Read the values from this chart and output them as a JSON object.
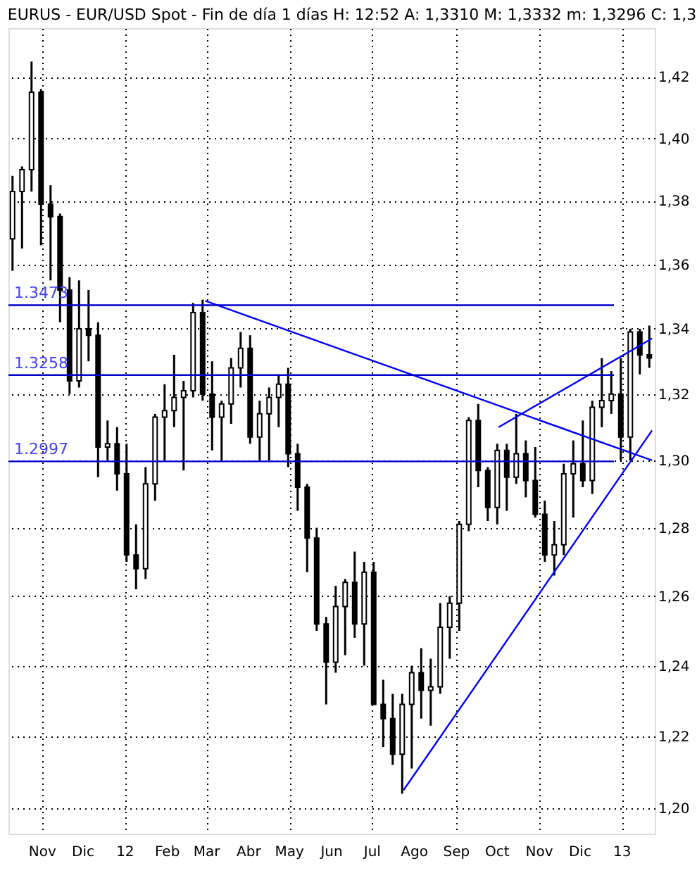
{
  "chart_data": {
    "type": "candlestick",
    "title": "EURUS - EUR/USD Spot - Fin de día 1 días H: 12:52 A: 1,3310 M: 1,3332 m: 1,3296 C: 1,3",
    "x": [
      "2011-10-10",
      "2011-10-17",
      "2011-10-24",
      "2011-10-31",
      "2011-11-07",
      "2011-11-14",
      "2011-11-21",
      "2011-11-28",
      "2011-12-05",
      "2011-12-12",
      "2011-12-19",
      "2011-12-26",
      "2012-01-02",
      "2012-01-09",
      "2012-01-16",
      "2012-01-23",
      "2012-01-30",
      "2012-02-06",
      "2012-02-13",
      "2012-02-20",
      "2012-02-27",
      "2012-03-05",
      "2012-03-12",
      "2012-03-19",
      "2012-03-26",
      "2012-04-02",
      "2012-04-09",
      "2012-04-16",
      "2012-04-23",
      "2012-04-30",
      "2012-05-07",
      "2012-05-14",
      "2012-05-21",
      "2012-05-28",
      "2012-06-04",
      "2012-06-11",
      "2012-06-18",
      "2012-06-25",
      "2012-07-02",
      "2012-07-09",
      "2012-07-16",
      "2012-07-23",
      "2012-07-30",
      "2012-08-06",
      "2012-08-13",
      "2012-08-20",
      "2012-08-27",
      "2012-09-03",
      "2012-09-10",
      "2012-09-17",
      "2012-09-24",
      "2012-10-01",
      "2012-10-08",
      "2012-10-15",
      "2012-10-22",
      "2012-10-29",
      "2012-11-05",
      "2012-11-12",
      "2012-11-19",
      "2012-11-26",
      "2012-12-03",
      "2012-12-10",
      "2012-12-17",
      "2012-12-24",
      "2012-12-31",
      "2013-01-07",
      "2013-01-14",
      "2013-01-21"
    ],
    "ohlc": [
      [
        1.368,
        1.388,
        1.358,
        1.383
      ],
      [
        1.383,
        1.391,
        1.365,
        1.39
      ],
      [
        1.39,
        1.425,
        1.383,
        1.415
      ],
      [
        1.415,
        1.416,
        1.366,
        1.379
      ],
      [
        1.379,
        1.385,
        1.355,
        1.375
      ],
      [
        1.375,
        1.376,
        1.342,
        1.352
      ],
      [
        1.352,
        1.356,
        1.32,
        1.324
      ],
      [
        1.324,
        1.355,
        1.322,
        1.34
      ],
      [
        1.34,
        1.352,
        1.33,
        1.338
      ],
      [
        1.338,
        1.342,
        1.295,
        1.304
      ],
      [
        1.304,
        1.312,
        1.3,
        1.305
      ],
      [
        1.305,
        1.31,
        1.291,
        1.296
      ],
      [
        1.296,
        1.305,
        1.27,
        1.272
      ],
      [
        1.272,
        1.281,
        1.262,
        1.268
      ],
      [
        1.268,
        1.298,
        1.265,
        1.293
      ],
      [
        1.293,
        1.314,
        1.288,
        1.313
      ],
      [
        1.313,
        1.323,
        1.3,
        1.315
      ],
      [
        1.315,
        1.332,
        1.31,
        1.319
      ],
      [
        1.319,
        1.324,
        1.297,
        1.321
      ],
      [
        1.321,
        1.348,
        1.319,
        1.345
      ],
      [
        1.345,
        1.349,
        1.318,
        1.32
      ],
      [
        1.32,
        1.33,
        1.303,
        1.313
      ],
      [
        1.313,
        1.318,
        1.3,
        1.317
      ],
      [
        1.317,
        1.331,
        1.311,
        1.328
      ],
      [
        1.328,
        1.339,
        1.322,
        1.334
      ],
      [
        1.334,
        1.338,
        1.305,
        1.307
      ],
      [
        1.307,
        1.318,
        1.3,
        1.314
      ],
      [
        1.314,
        1.322,
        1.3,
        1.319
      ],
      [
        1.319,
        1.326,
        1.31,
        1.323
      ],
      [
        1.323,
        1.328,
        1.298,
        1.302
      ],
      [
        1.302,
        1.305,
        1.285,
        1.292
      ],
      [
        1.292,
        1.293,
        1.267,
        1.277
      ],
      [
        1.277,
        1.28,
        1.25,
        1.252
      ],
      [
        1.252,
        1.254,
        1.229,
        1.241
      ],
      [
        1.241,
        1.263,
        1.238,
        1.257
      ],
      [
        1.257,
        1.265,
        1.243,
        1.264
      ],
      [
        1.264,
        1.273,
        1.248,
        1.252
      ],
      [
        1.252,
        1.27,
        1.24,
        1.267
      ],
      [
        1.267,
        1.27,
        1.229,
        1.229
      ],
      [
        1.229,
        1.236,
        1.217,
        1.225
      ],
      [
        1.225,
        1.232,
        1.212,
        1.215
      ],
      [
        1.215,
        1.232,
        1.204,
        1.229
      ],
      [
        1.229,
        1.24,
        1.211,
        1.238
      ],
      [
        1.238,
        1.245,
        1.225,
        1.233
      ],
      [
        1.233,
        1.242,
        1.223,
        1.234
      ],
      [
        1.234,
        1.258,
        1.232,
        1.251
      ],
      [
        1.251,
        1.26,
        1.242,
        1.258
      ],
      [
        1.258,
        1.282,
        1.25,
        1.281
      ],
      [
        1.281,
        1.313,
        1.279,
        1.312
      ],
      [
        1.312,
        1.317,
        1.292,
        1.297
      ],
      [
        1.297,
        1.298,
        1.282,
        1.286
      ],
      [
        1.286,
        1.305,
        1.281,
        1.303
      ],
      [
        1.303,
        1.305,
        1.285,
        1.295
      ],
      [
        1.295,
        1.314,
        1.293,
        1.302
      ],
      [
        1.302,
        1.306,
        1.289,
        1.294
      ],
      [
        1.294,
        1.304,
        1.283,
        1.284
      ],
      [
        1.284,
        1.288,
        1.27,
        1.272
      ],
      [
        1.272,
        1.282,
        1.266,
        1.275
      ],
      [
        1.275,
        1.299,
        1.272,
        1.296
      ],
      [
        1.296,
        1.306,
        1.283,
        1.299
      ],
      [
        1.299,
        1.312,
        1.292,
        1.294
      ],
      [
        1.294,
        1.318,
        1.29,
        1.316
      ],
      [
        1.316,
        1.331,
        1.31,
        1.318
      ],
      [
        1.318,
        1.327,
        1.314,
        1.32
      ],
      [
        1.32,
        1.331,
        1.3,
        1.307
      ],
      [
        1.307,
        1.34,
        1.3,
        1.339
      ],
      [
        1.339,
        1.34,
        1.326,
        1.332
      ],
      [
        1.332,
        1.341,
        1.328,
        1.331
      ]
    ],
    "series": [
      {
        "type": "line",
        "color": "#0000ff",
        "x": [
          "2012-02-29",
          "2013-01-23"
        ],
        "values": [
          1.3486,
          1.3
        ]
      },
      {
        "type": "line",
        "color": "#0000ff",
        "x": [
          "2012-07-24",
          "2013-01-23"
        ],
        "values": [
          1.205,
          1.309
        ]
      },
      {
        "type": "line",
        "color": "#0000ff",
        "x": [
          "2012-10-02",
          "2013-01-23"
        ],
        "values": [
          1.31,
          1.337
        ]
      }
    ],
    "ref_lines": [
      {
        "axis": "y",
        "value": 1.3473,
        "label": "1.3473",
        "color": "#0000cc"
      },
      {
        "axis": "y",
        "value": 1.3258,
        "label": "1.3258",
        "color": "#0000cc"
      },
      {
        "axis": "y",
        "value": 1.2997,
        "label": "1.2997",
        "color": "#0000cc"
      }
    ],
    "xlim": [
      "2011-10-07",
      "2013-01-25"
    ],
    "xticks": [
      {
        "value": "2011-11-01",
        "label": "Nov"
      },
      {
        "value": "2011-12-01",
        "label": "Dic"
      },
      {
        "value": "2012-01-01",
        "label": "12"
      },
      {
        "value": "2012-02-01",
        "label": "Feb"
      },
      {
        "value": "2012-03-01",
        "label": "Mar"
      },
      {
        "value": "2012-04-01",
        "label": "Abr"
      },
      {
        "value": "2012-05-01",
        "label": "May"
      },
      {
        "value": "2012-06-01",
        "label": "Jun"
      },
      {
        "value": "2012-07-01",
        "label": "Jul"
      },
      {
        "value": "2012-08-01",
        "label": "Ago"
      },
      {
        "value": "2012-09-01",
        "label": "Sep"
      },
      {
        "value": "2012-10-01",
        "label": "Oct"
      },
      {
        "value": "2012-11-01",
        "label": "Nov"
      },
      {
        "value": "2012-12-01",
        "label": "Dic"
      },
      {
        "value": "2013-01-01",
        "label": "13"
      }
    ],
    "ylim": [
      1.193,
      1.436
    ],
    "yticks": [
      {
        "value": 1.2,
        "label": "1,20"
      },
      {
        "value": 1.22,
        "label": "1,22"
      },
      {
        "value": 1.24,
        "label": "1,24"
      },
      {
        "value": 1.26,
        "label": "1,26"
      },
      {
        "value": 1.28,
        "label": "1,28"
      },
      {
        "value": 1.3,
        "label": "1,30"
      },
      {
        "value": 1.32,
        "label": "1,32"
      },
      {
        "value": 1.34,
        "label": "1,34"
      },
      {
        "value": 1.36,
        "label": "1,36"
      },
      {
        "value": 1.38,
        "label": "1,38"
      },
      {
        "value": 1.4,
        "label": "1,40"
      },
      {
        "value": 1.42,
        "label": "1,42"
      }
    ],
    "log": true,
    "grid": true
  }
}
